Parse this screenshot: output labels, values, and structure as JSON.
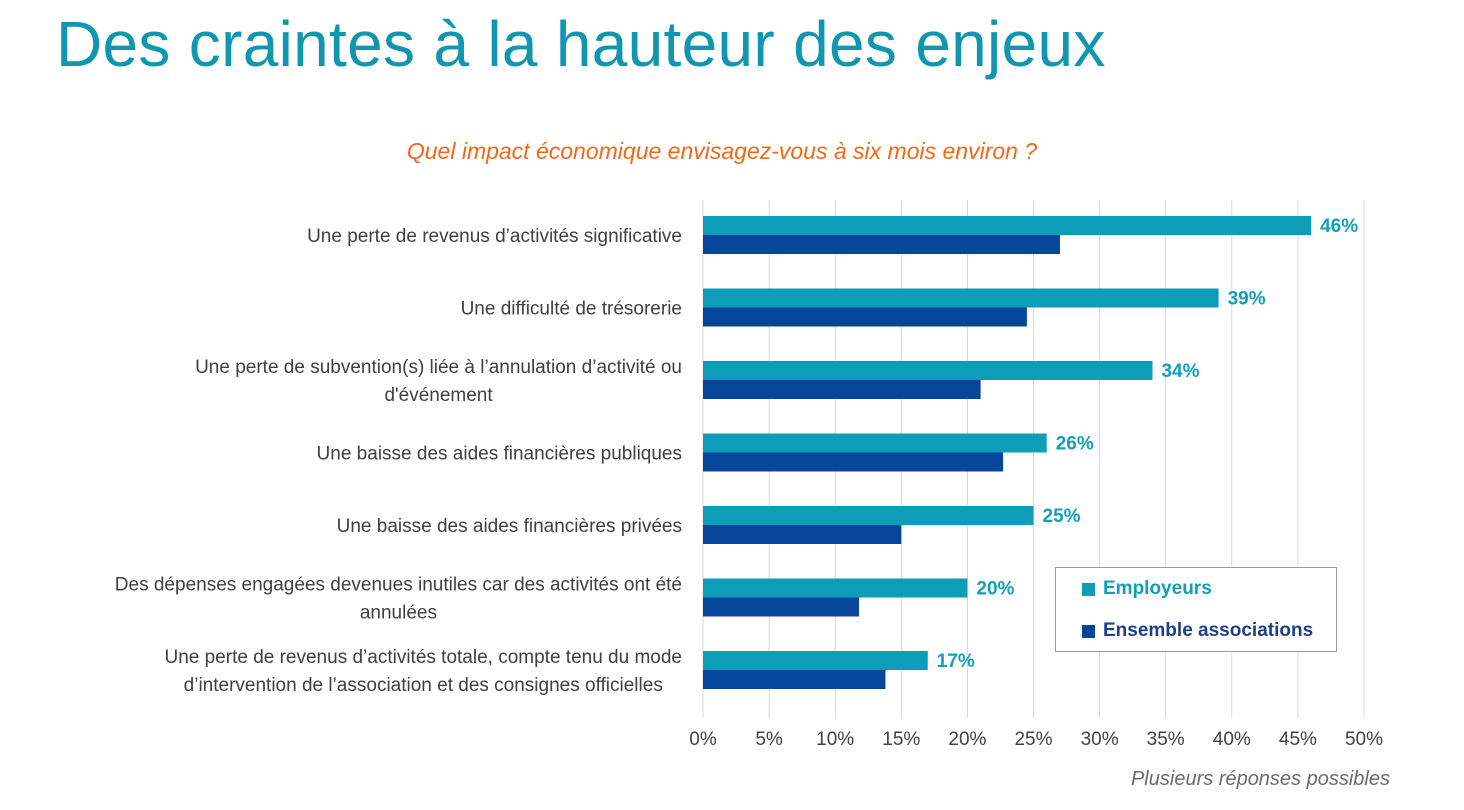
{
  "slide": {
    "title": "Des craintes à la hauteur des enjeux",
    "question": "Quel impact économique envisagez-vous à six mois environ ?",
    "footnote": "Plusieurs réponses possibles"
  },
  "chart_data": {
    "type": "bar",
    "orientation": "horizontal",
    "title": "Quel impact économique envisagez-vous à six mois environ ?",
    "categories": [
      "Une perte de revenus d’activités significative",
      "Une difficulté de trésorerie",
      "Une perte de subvention(s) liée à l’annulation d’activité ou d'événement",
      "Une baisse des aides financières publiques",
      "Une baisse des aides financières privées",
      "Des dépenses engagées devenues inutiles car des activités ont été annulées",
      "Une perte de revenus d’activités totale, compte tenu du mode d’intervention de l’association et des consignes officielles"
    ],
    "category_lines": [
      [
        "Une perte de revenus d’activités significative"
      ],
      [
        "Une difficulté de trésorerie"
      ],
      [
        "Une perte de subvention(s) liée à l’annulation d’activité ou",
        "d'événement"
      ],
      [
        "Une baisse des aides financières publiques"
      ],
      [
        "Une baisse des aides financières privées"
      ],
      [
        "Des dépenses engagées devenues inutiles car des activités ont été",
        "annulées"
      ],
      [
        "Une perte de revenus d’activités totale, compte tenu du mode",
        "d’intervention de l’association et des consignes officielles"
      ]
    ],
    "series": [
      {
        "name": "Employeurs",
        "color": "#0e9db8",
        "values": [
          46,
          39,
          34,
          26,
          25,
          20,
          17
        ],
        "labels": [
          "46%",
          "39%",
          "34%",
          "26%",
          "25%",
          "20%",
          "17%"
        ]
      },
      {
        "name": "Ensemble associations",
        "color": "#05469a",
        "values": [
          27,
          24.5,
          21,
          22.7,
          15,
          11.8,
          13.8
        ]
      }
    ],
    "xlim": [
      0,
      50
    ],
    "xticks": [
      "0%",
      "5%",
      "10%",
      "15%",
      "20%",
      "25%",
      "30%",
      "35%",
      "40%",
      "45%",
      "50%"
    ],
    "grid": true,
    "legend_position": "bottom-right",
    "label_color": "#119fba"
  }
}
